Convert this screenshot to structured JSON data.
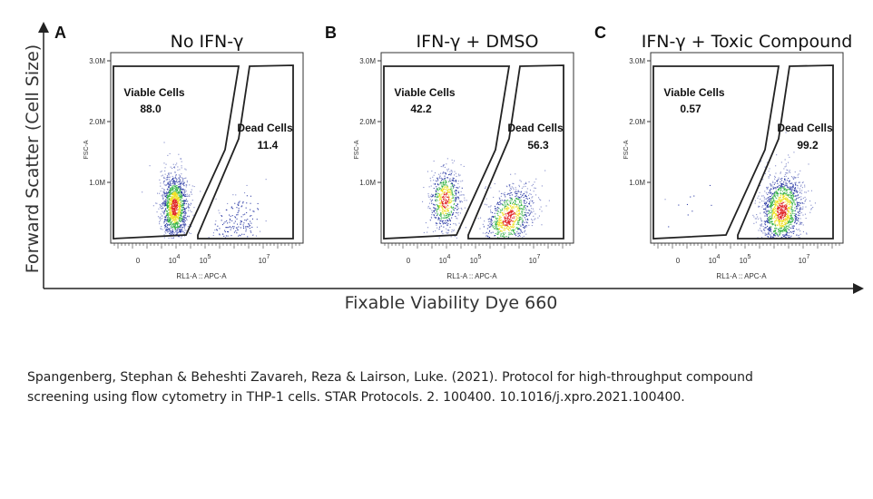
{
  "figure": {
    "y_axis_label": "Forward Scatter (Cell Size)",
    "x_axis_label": "Fixable Viability Dye 660",
    "citation_lines": [
      "Spangenberg, Stephan & Beheshti Zavareh, Reza & Lairson, Luke. (2021). Protocol for high-throughput compound",
      "screening using flow cytometry in THP-1 cells. STAR Protocols. 2. 100400. 10.1016/j.xpro.2021.100400."
    ]
  },
  "chart_data": [
    {
      "type": "scatter",
      "panel_letter": "A",
      "title": "No IFN-γ",
      "xlabel": "RL1-A :: APC-A",
      "ylabel": "FSC-A",
      "x_ticks": [
        "0",
        "10^4",
        "10^5",
        "10^7"
      ],
      "y_ticks": [
        "1.0M",
        "2.0M",
        "3.0M"
      ],
      "gates": [
        {
          "name": "Viable Cells",
          "percent": "88.0"
        },
        {
          "name": "Dead Cells",
          "percent": "11.4"
        }
      ]
    },
    {
      "type": "scatter",
      "panel_letter": "B",
      "title": "IFN-γ + DMSO",
      "xlabel": "RL1-A :: APC-A",
      "ylabel": "FSC-A",
      "x_ticks": [
        "0",
        "10^4",
        "10^5",
        "10^7"
      ],
      "y_ticks": [
        "1.0M",
        "2.0M",
        "3.0M"
      ],
      "gates": [
        {
          "name": "Viable Cells",
          "percent": "42.2"
        },
        {
          "name": "Dead Cells",
          "percent": "56.3"
        }
      ]
    },
    {
      "type": "scatter",
      "panel_letter": "C",
      "title": "IFN-γ + Toxic Compound",
      "xlabel": "RL1-A :: APC-A",
      "ylabel": "FSC-A",
      "x_ticks": [
        "0",
        "10^4",
        "10^5",
        "10^7"
      ],
      "y_ticks": [
        "1.0M",
        "2.0M",
        "3.0M"
      ],
      "gates": [
        {
          "name": "Viable Cells",
          "percent": "0.57"
        },
        {
          "name": "Dead Cells",
          "percent": "99.2"
        }
      ]
    }
  ],
  "colors": {
    "density_high": "#e02020",
    "density_mid": "#f0e020",
    "density_low_mid": "#30b040",
    "density_low": "#2030a0",
    "gate": "#222222"
  }
}
